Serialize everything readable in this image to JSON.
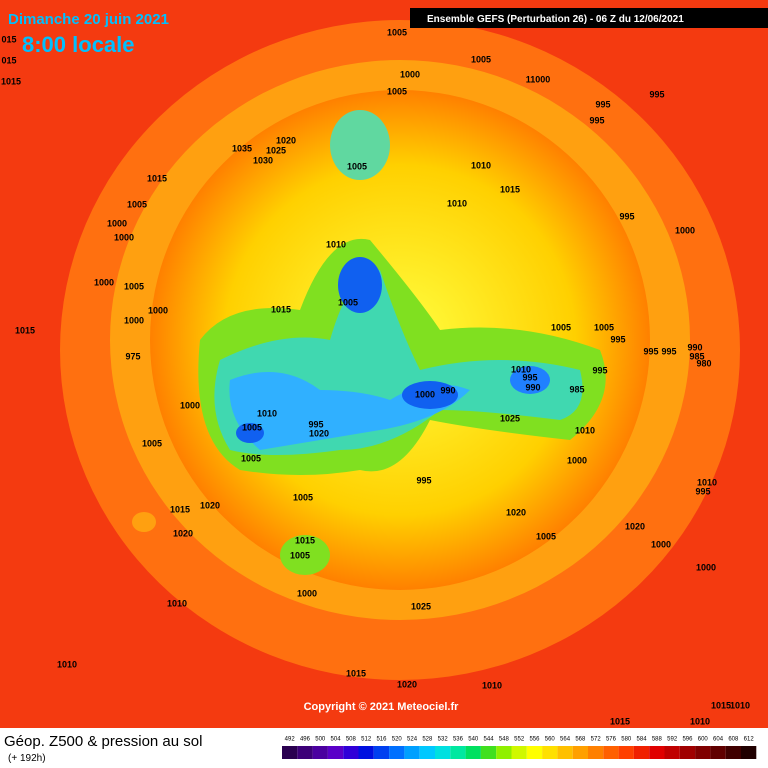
{
  "header": {
    "date": "Dimanche 20 juin 2021",
    "time": "8:00 locale",
    "model": "Ensemble GEFS  (Perturbation 26)  -  06 Z du 12/06/2021"
  },
  "map": {
    "pressure_labels": [
      "015",
      "015",
      "1015",
      1005,
      1005,
      1000,
      11000,
      995,
      995,
      995,
      1005,
      1020,
      1035,
      1025,
      1030,
      1005,
      1010,
      1015,
      1010,
      1015,
      1005,
      1000,
      1000,
      995,
      1000,
      1010,
      1000,
      1005,
      1000,
      1000,
      1005,
      1015,
      1015,
      1005,
      1005,
      995,
      995,
      995,
      990,
      985,
      980,
      975,
      1010,
      995,
      990,
      985,
      995,
      1000,
      990,
      1000,
      1010,
      1005,
      995,
      1020,
      1025,
      1010,
      1005,
      1005,
      1000,
      1010,
      995,
      995,
      1005,
      1020,
      1015,
      1020,
      1020,
      1020,
      1005,
      1015,
      1005,
      1000,
      1000,
      1000,
      1010,
      1025,
      1010,
      1015,
      1020,
      1010,
      1015,
      1015,
      1010,
      1010
    ],
    "copyright": "Copyright © 2021 Meteociel.fr"
  },
  "footer": {
    "title": "Géop. Z500 & pression au sol",
    "lead": "(+ 192h)"
  },
  "scale": {
    "labels": [
      492,
      496,
      500,
      504,
      508,
      512,
      516,
      520,
      524,
      528,
      532,
      536,
      540,
      544,
      548,
      552,
      556,
      560,
      564,
      568,
      572,
      576,
      580,
      584,
      588,
      592,
      596,
      600,
      604,
      608,
      612
    ],
    "colors": [
      "#2a0050",
      "#3c0078",
      "#4b00a0",
      "#5a00c8",
      "#3000d8",
      "#0010e0",
      "#0040f0",
      "#0070ff",
      "#00a0ff",
      "#00c8ff",
      "#00e0e0",
      "#00e8a0",
      "#00e060",
      "#40e020",
      "#90f000",
      "#d0f800",
      "#ffff00",
      "#ffe000",
      "#ffc000",
      "#ffa000",
      "#ff8000",
      "#ff6000",
      "#ff4000",
      "#f02000",
      "#e00000",
      "#c00000",
      "#a00000",
      "#800000",
      "#600000",
      "#400000",
      "#200000"
    ]
  }
}
